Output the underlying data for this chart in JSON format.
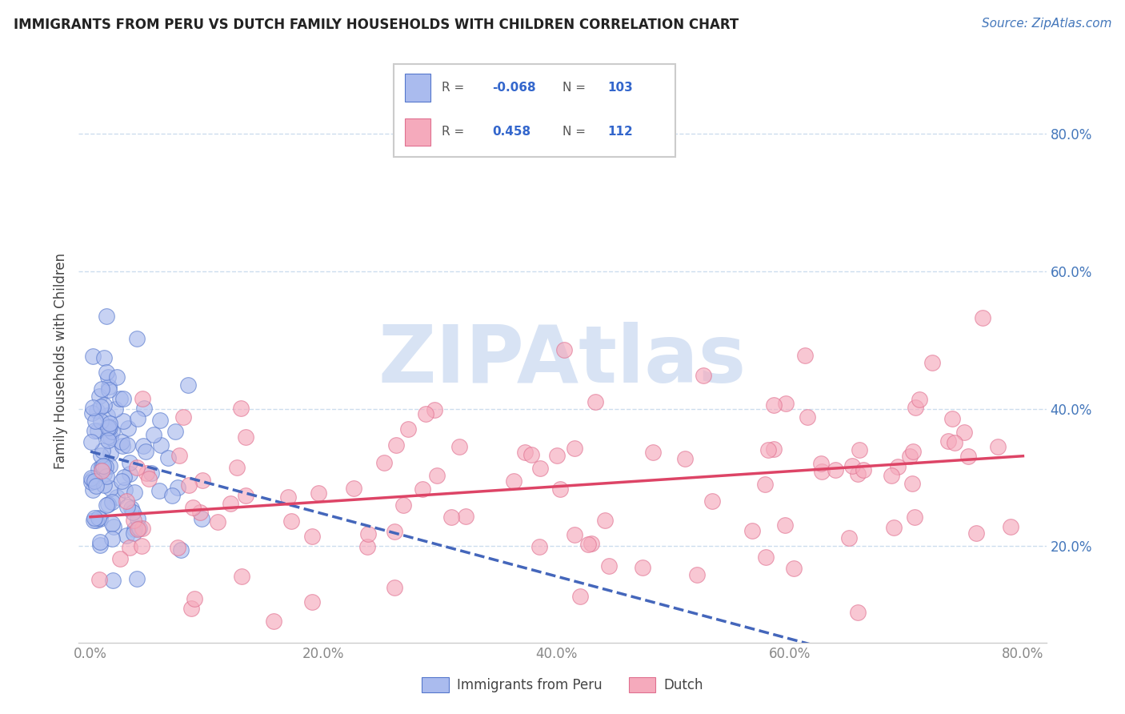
{
  "title": "IMMIGRANTS FROM PERU VS DUTCH FAMILY HOUSEHOLDS WITH CHILDREN CORRELATION CHART",
  "source": "Source: ZipAtlas.com",
  "ylabel": "Family Households with Children",
  "r_blue": -0.068,
  "r_pink": 0.458,
  "n_blue": 103,
  "n_pink": 112,
  "blue_face": "#aabbee",
  "blue_edge": "#5577cc",
  "pink_face": "#f5aabc",
  "pink_edge": "#e07090",
  "blue_line": "#4466bb",
  "pink_line": "#dd4466",
  "grid_color": "#ccddee",
  "ytick_color": "#4477bb",
  "watermark_color": "#c8d8f0",
  "xlim": [
    -0.01,
    0.82
  ],
  "ylim": [
    0.06,
    0.88
  ],
  "xticks": [
    0.0,
    0.2,
    0.4,
    0.6,
    0.8
  ],
  "yticks": [
    0.2,
    0.4,
    0.6,
    0.8
  ]
}
